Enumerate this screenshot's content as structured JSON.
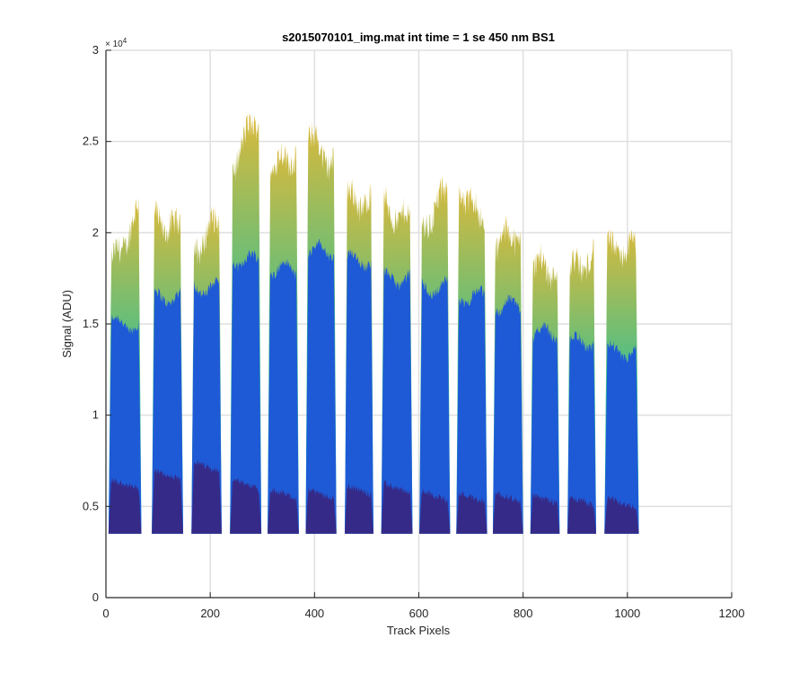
{
  "chart_data": {
    "type": "area",
    "title": "s2015070101_img.mat int time = 1 se  450 nm BS1",
    "xlabel": "Track Pixels",
    "ylabel": "Signal (ADU)",
    "xlim": [
      0,
      1200
    ],
    "ylim": [
      0,
      30000
    ],
    "x_ticks": [
      0,
      200,
      400,
      600,
      800,
      1000,
      1200
    ],
    "x_tick_labels": [
      "0",
      "200",
      "400",
      "600",
      "800",
      "1000",
      "1200"
    ],
    "y_ticks": [
      0,
      5000,
      10000,
      15000,
      20000,
      25000,
      30000
    ],
    "y_tick_labels": [
      "0",
      "0.5",
      "1",
      "1.5",
      "2",
      "2.5",
      "3"
    ],
    "y_exponent_label": "× 10",
    "y_exponent_power": "4",
    "grid": true,
    "baseline": 3500,
    "colors": {
      "bottom_layer": "#352a87",
      "middle_layer": "#1f5ad6",
      "top_low": "#0fafbd",
      "top_mid": "#3fc08e",
      "top_high": "#dcb93a"
    },
    "tracks": [
      {
        "x_start": 5,
        "x_end": 68,
        "low": 6500,
        "mid": 15000,
        "max_start": 17800,
        "max_end": 21500
      },
      {
        "x_start": 88,
        "x_end": 148,
        "low": 7000,
        "mid": 16500,
        "max_start": 20800,
        "max_end": 20000
      },
      {
        "x_start": 164,
        "x_end": 222,
        "low": 7500,
        "mid": 17000,
        "max_start": 18800,
        "max_end": 21000
      },
      {
        "x_start": 238,
        "x_end": 298,
        "low": 6500,
        "mid": 18500,
        "max_start": 23500,
        "max_end": 26800
      },
      {
        "x_start": 310,
        "x_end": 370,
        "low": 6000,
        "mid": 18000,
        "max_start": 23500,
        "max_end": 24500
      },
      {
        "x_start": 383,
        "x_end": 442,
        "low": 6000,
        "mid": 19000,
        "max_start": 25500,
        "max_end": 23500
      },
      {
        "x_start": 458,
        "x_end": 513,
        "low": 6200,
        "mid": 18500,
        "max_start": 22000,
        "max_end": 21500
      },
      {
        "x_start": 528,
        "x_end": 588,
        "low": 6300,
        "mid": 17500,
        "max_start": 21500,
        "max_end": 20500
      },
      {
        "x_start": 601,
        "x_end": 660,
        "low": 5900,
        "mid": 17000,
        "max_start": 20000,
        "max_end": 22500
      },
      {
        "x_start": 672,
        "x_end": 731,
        "low": 5800,
        "mid": 16500,
        "max_start": 22500,
        "max_end": 20500
      },
      {
        "x_start": 742,
        "x_end": 800,
        "low": 5800,
        "mid": 16000,
        "max_start": 19500,
        "max_end": 20000
      },
      {
        "x_start": 814,
        "x_end": 870,
        "low": 5700,
        "mid": 14500,
        "max_start": 18300,
        "max_end": 18000
      },
      {
        "x_start": 885,
        "x_end": 940,
        "low": 5600,
        "mid": 14000,
        "max_start": 17800,
        "max_end": 18700
      },
      {
        "x_start": 956,
        "x_end": 1022,
        "low": 5500,
        "mid": 13500,
        "max_start": 19200,
        "max_end": 19000
      }
    ]
  }
}
